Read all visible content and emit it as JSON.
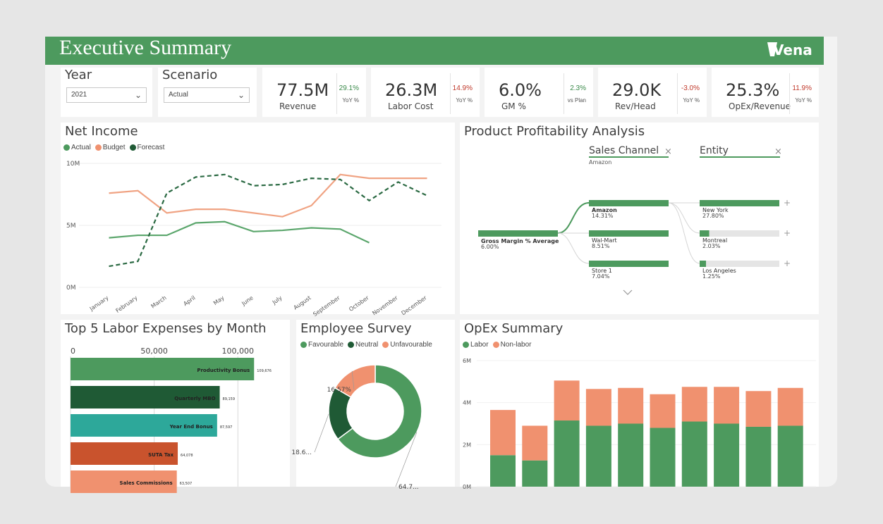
{
  "header": {
    "title": "Executive Summary",
    "logo_text": "Vena"
  },
  "slicers": {
    "year": {
      "label": "Year",
      "value": "2021"
    },
    "scenario": {
      "label": "Scenario",
      "value": "Actual"
    }
  },
  "kpis": [
    {
      "value": "77.5M",
      "label": "Revenue",
      "delta": "29.1%",
      "sub": "YoY %",
      "delta_color": "#3a8a4a"
    },
    {
      "value": "26.3M",
      "label": "Labor Cost",
      "delta": "14.9%",
      "sub": "YoY %",
      "delta_color": "#c0392b"
    },
    {
      "value": "6.0%",
      "label": "GM %",
      "delta": "2.3%",
      "sub": "vs Plan",
      "delta_color": "#3a8a4a"
    },
    {
      "value": "29.0K",
      "label": "Rev/Head",
      "delta": "-3.0%",
      "sub": "YoY %",
      "delta_color": "#c0392b"
    },
    {
      "value": "25.3%",
      "label": "OpEx/Revenue",
      "delta": "11.9%",
      "sub": "YoY %",
      "delta_color": "#c0392b"
    }
  ],
  "net_income": {
    "title": "Net Income",
    "legend": [
      "Actual",
      "Budget",
      "Forecast"
    ]
  },
  "profitability": {
    "title": "Product Profitability Analysis",
    "col1_header": "Sales Channel",
    "col1_sub": "Amazon",
    "col2_header": "Entity",
    "root_label": "Gross Margin % Average",
    "root_value": "6.00%",
    "channels": [
      {
        "name": "Amazon",
        "value": "14.31%"
      },
      {
        "name": "Wal-Mart",
        "value": "8.51%"
      },
      {
        "name": "Store 1",
        "value": "7.04%"
      }
    ],
    "entities": [
      {
        "name": "New York",
        "value": "27.80%"
      },
      {
        "name": "Montreal",
        "value": "2.03%"
      },
      {
        "name": "Los Angeles",
        "value": "1.25%"
      }
    ],
    "close": "×",
    "plus": "+"
  },
  "labor": {
    "title": "Top 5 Labor Expenses by Month"
  },
  "survey": {
    "title": "Employee Survey",
    "legend": [
      "Favourable",
      "Neutral",
      "Unfavourable"
    ]
  },
  "opex": {
    "title": "OpEx Summary",
    "legend": [
      "Labor",
      "Non-labor"
    ]
  },
  "colors": {
    "green": "#4d9a5e",
    "dark_green": "#1f5a35",
    "salmon": "#f0916f",
    "teal": "#2da89a",
    "orange_red": "#c9532d"
  },
  "chart_data": [
    {
      "type": "line",
      "title": "Net Income",
      "x": [
        "January",
        "February",
        "March",
        "April",
        "May",
        "June",
        "July",
        "August",
        "September",
        "October",
        "November",
        "December"
      ],
      "y_ticks": [
        "0M",
        "5M",
        "10M"
      ],
      "ylim": [
        0,
        10
      ],
      "series": [
        {
          "name": "Actual",
          "values": [
            4.0,
            4.2,
            4.2,
            5.2,
            5.3,
            4.5,
            4.6,
            4.8,
            4.7,
            3.6,
            null,
            null
          ]
        },
        {
          "name": "Budget",
          "values": [
            7.6,
            7.8,
            6.0,
            6.3,
            6.3,
            6.0,
            5.7,
            6.6,
            9.1,
            8.8,
            8.8,
            8.8
          ]
        },
        {
          "name": "Forecast",
          "values": [
            1.7,
            2.1,
            7.6,
            8.9,
            9.1,
            8.2,
            8.3,
            8.8,
            8.7,
            7.0,
            8.5,
            7.4
          ]
        }
      ]
    },
    {
      "type": "bar",
      "title": "Top 5 Labor Expenses by Month",
      "orientation": "horizontal",
      "x_ticks": [
        "0",
        "50,000",
        "100,000"
      ],
      "xlim": [
        0,
        110000
      ],
      "categories": [
        "Productivity Bonus",
        "Quarterly MBO",
        "Year End Bonus",
        "SUTA Tax",
        "Sales Commissions"
      ],
      "values": [
        109676,
        89159,
        87597,
        64078,
        63507
      ],
      "value_labels": [
        "109,676",
        "89,159",
        "87,597",
        "64,078",
        "63,507"
      ]
    },
    {
      "type": "pie",
      "title": "Employee Survey",
      "categories": [
        "Favourable",
        "Neutral",
        "Unfavourable"
      ],
      "values": [
        64.7,
        18.6,
        16.57
      ],
      "value_labels": [
        "64.7...",
        "18.6...",
        "16.57%"
      ]
    },
    {
      "type": "bar",
      "title": "OpEx Summary",
      "stacked": true,
      "y_ticks": [
        "0M",
        "2M",
        "4M",
        "6M"
      ],
      "ylim": [
        0,
        6
      ],
      "series": [
        {
          "name": "Labor",
          "values": [
            1.5,
            1.25,
            3.15,
            2.9,
            3.0,
            2.8,
            3.1,
            3.0,
            2.85,
            2.9
          ]
        },
        {
          "name": "Non-labor",
          "values": [
            2.15,
            1.65,
            1.9,
            1.75,
            1.7,
            1.6,
            1.65,
            1.75,
            1.7,
            1.8
          ]
        }
      ]
    }
  ]
}
